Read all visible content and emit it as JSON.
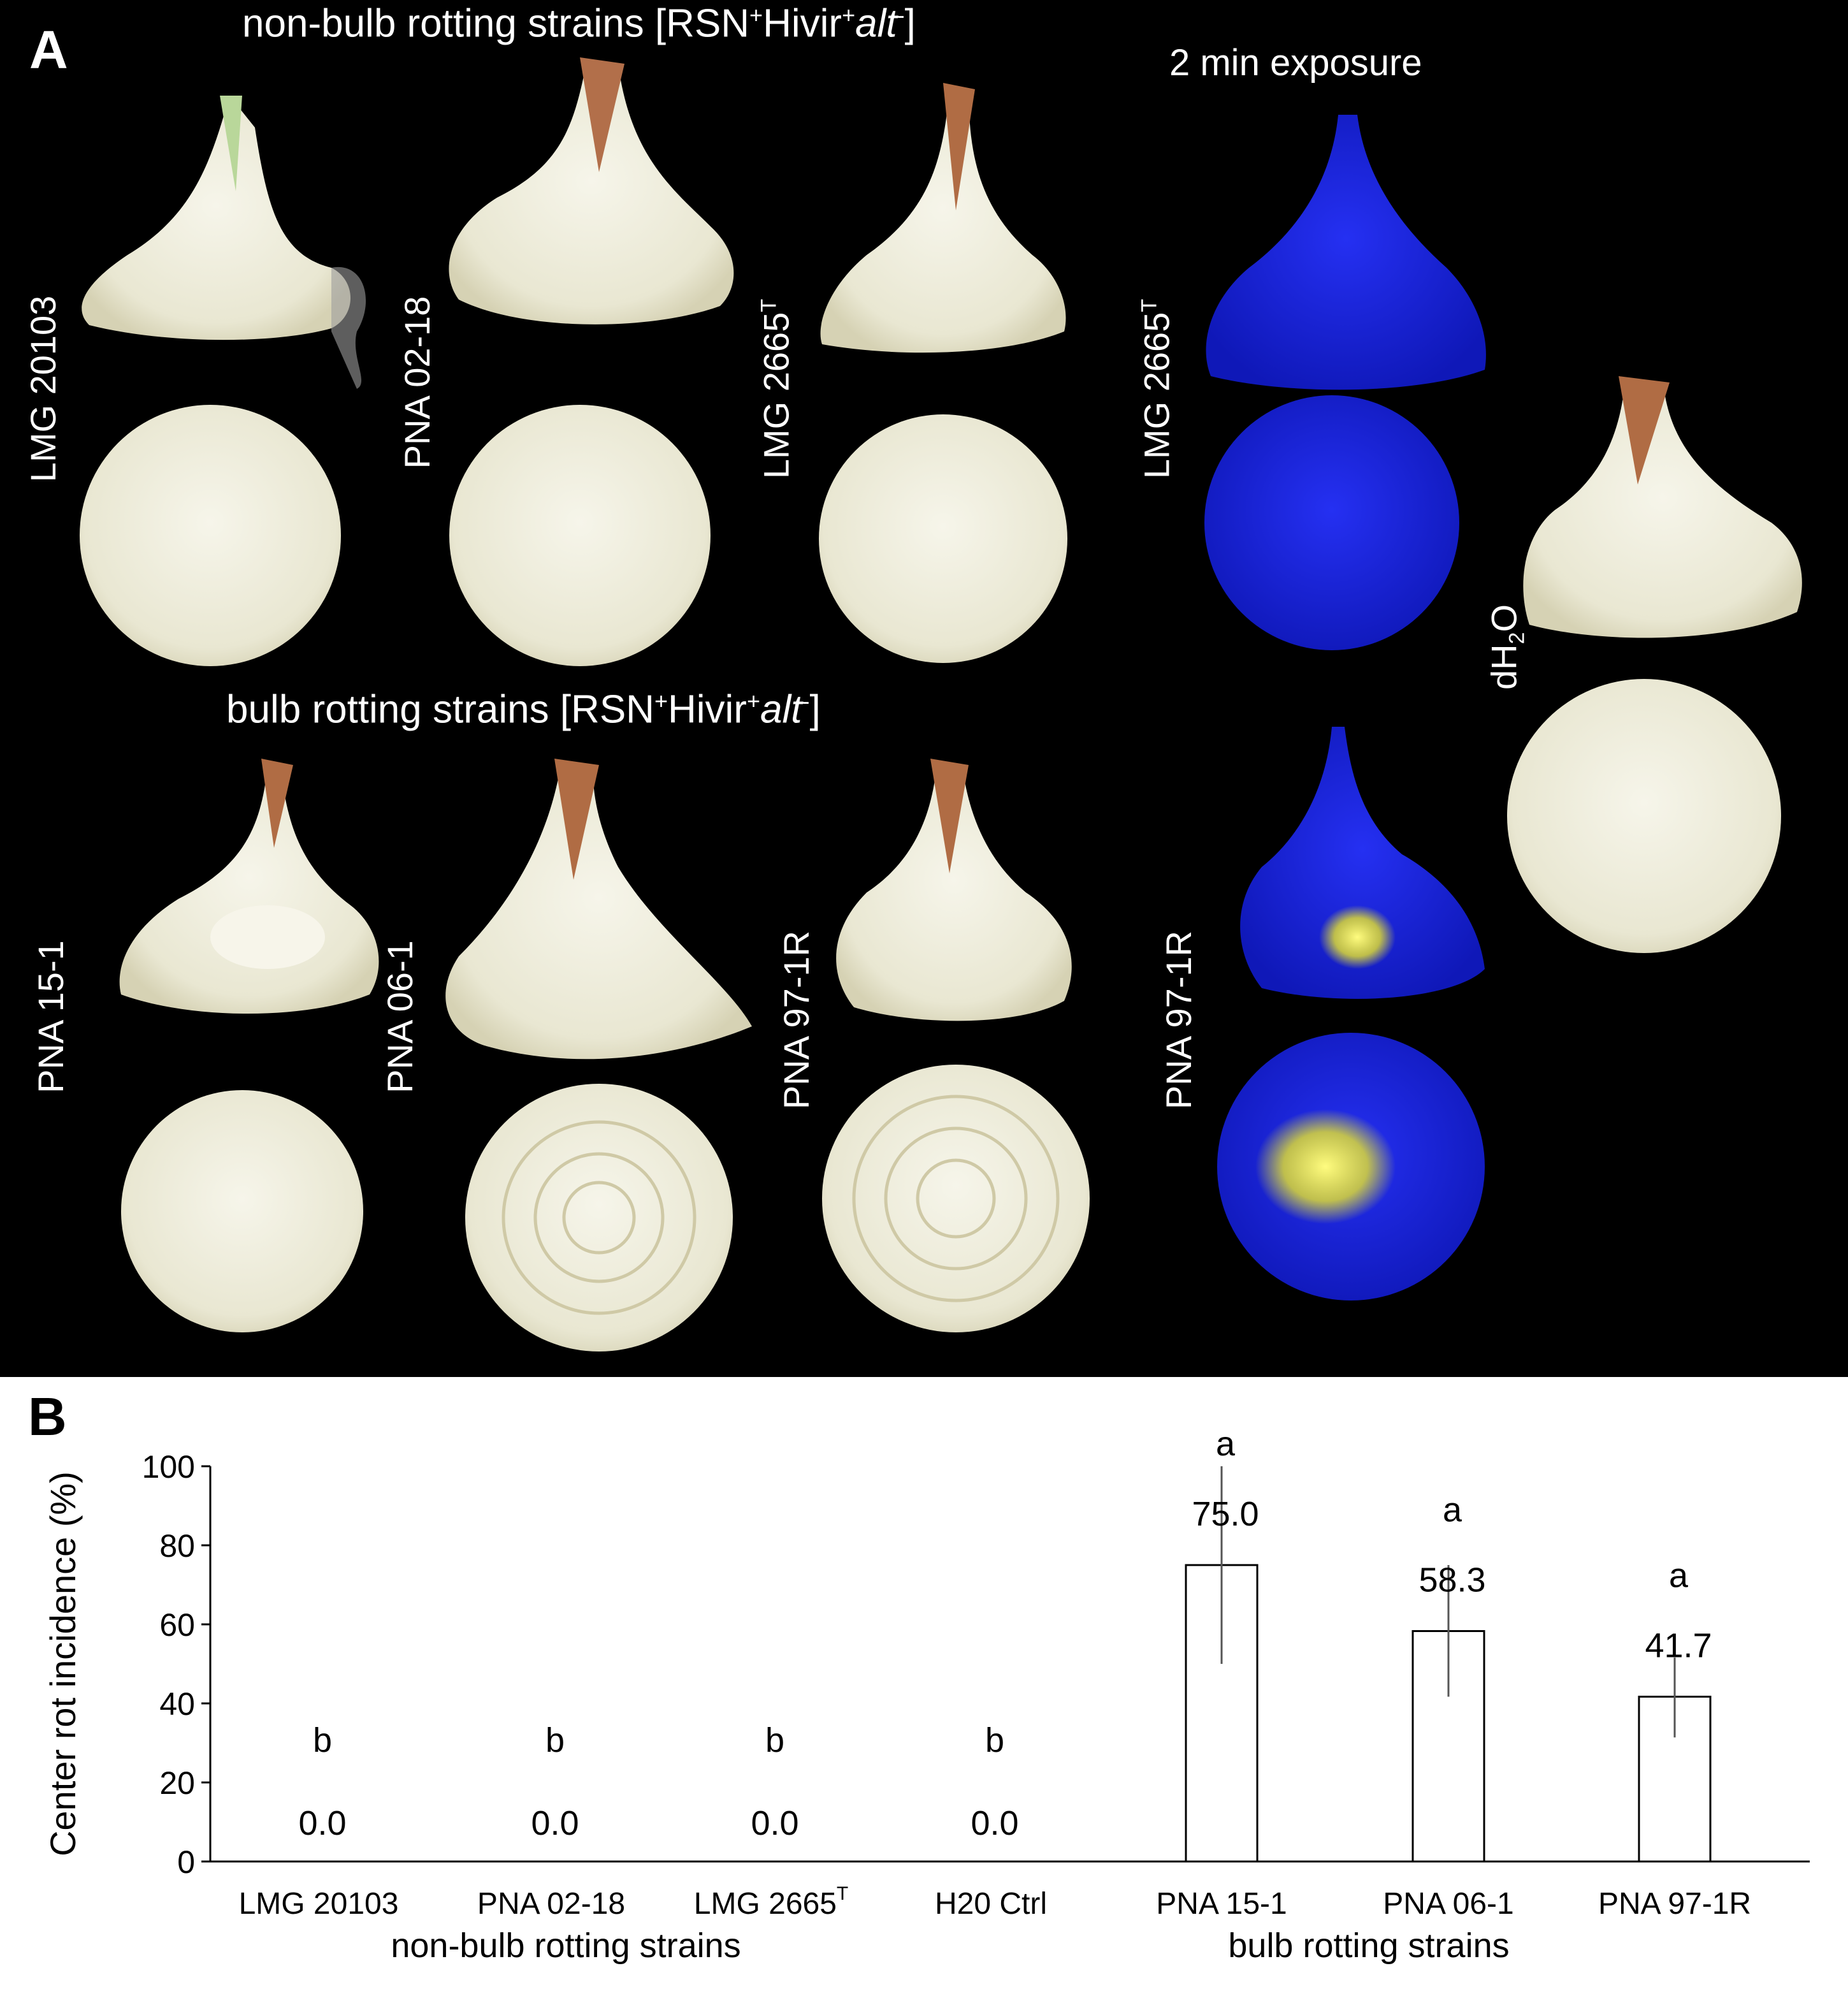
{
  "panel_a": {
    "letter": "A",
    "top_heading": {
      "text": "non-bulb rotting strains [RSN",
      "sup1": "+",
      "mid": "Hivir",
      "sup2": "+",
      "italic": "alt",
      "sup3": "-",
      "tail": "]"
    },
    "bottom_heading": {
      "text": "bulb rotting strains [RSN",
      "sup1": "+",
      "mid": "Hivir",
      "sup2": "+",
      "italic": "alt",
      "sup3": "-",
      "tail": "]"
    },
    "exposure_label": "2 min exposure",
    "labels": {
      "lmg20103": "LMG 20103",
      "pna0218": "PNA 02-18",
      "lmg2665_base": "LMG 2665",
      "lmg2665_sup": "T",
      "pna151": "PNA 15-1",
      "pna061": "PNA 06-1",
      "pna971r": "PNA 97-1R",
      "dh2o_d": "dH",
      "dh2o_sub": "2",
      "dh2o_o": "O"
    },
    "colors": {
      "background": "#000000",
      "onion_flesh": "#efeede",
      "fluor_blue": "#1a22e0",
      "fluor_yellow": "#f4f13a"
    }
  },
  "panel_b": {
    "letter": "B",
    "x_groups": {
      "left": "non-bulb rotting strains",
      "right": "bulb rotting strains"
    }
  },
  "chart_data": {
    "type": "bar",
    "categories": [
      "LMG 20103",
      "PNA 02-18",
      "LMG 2665",
      "H20 Ctrl",
      "PNA 15-1",
      "PNA 06-1",
      "PNA 97-1R"
    ],
    "category_superscripts": [
      "",
      "",
      "T",
      "",
      "",
      "",
      ""
    ],
    "values": [
      0.0,
      0.0,
      0.0,
      0.0,
      75.0,
      58.3,
      41.7
    ],
    "value_labels": [
      "0.0",
      "0.0",
      "0.0",
      "0.0",
      "75.0",
      "58.3",
      "41.7"
    ],
    "error_low": [
      0,
      0,
      0,
      0,
      50,
      41.7,
      31.4
    ],
    "error_high": [
      0,
      0,
      0,
      0,
      100,
      75.0,
      51.6
    ],
    "significance": [
      "b",
      "b",
      "b",
      "b",
      "a",
      "a",
      "a"
    ],
    "ylabel": "Center rot incidence (%)",
    "xlabel": "",
    "ylim": [
      0,
      100
    ],
    "yticks": [
      0,
      20,
      40,
      60,
      80,
      100
    ],
    "grid": false,
    "bar_fill": "#ffffff",
    "bar_edge": "#000000"
  }
}
